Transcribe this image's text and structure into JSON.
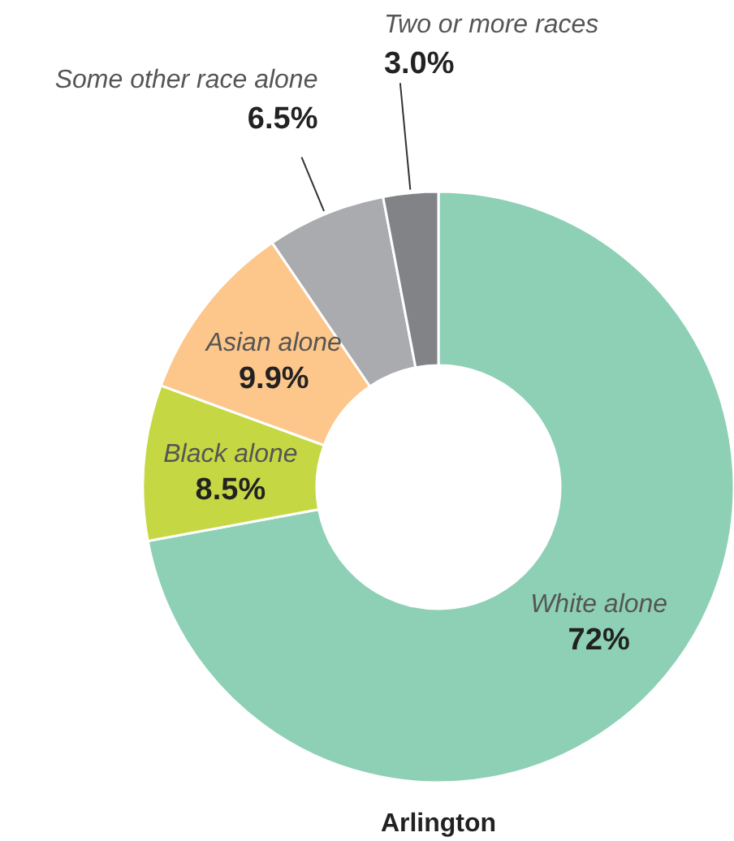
{
  "chart_data": {
    "type": "donut",
    "title": "Arlington",
    "categories": [
      "White alone",
      "Black alone",
      "Asian alone",
      "Some other race alone",
      "Two or more races"
    ],
    "values": [
      72,
      8.5,
      9.9,
      6.5,
      3.0
    ],
    "value_labels": [
      "72%",
      "8.5%",
      "9.9%",
      "6.5%",
      "3.0%"
    ],
    "colors": [
      "#8dd0b6",
      "#c5d843",
      "#fdc68a",
      "#a9abae",
      "#818386"
    ]
  }
}
